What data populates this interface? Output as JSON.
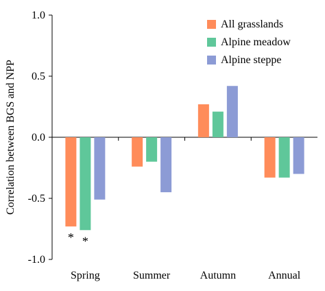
{
  "chart_data": {
    "type": "bar",
    "ylabel": "Correlation between BGS and NPP",
    "xlabel": "",
    "ylim": [
      -1.0,
      1.0
    ],
    "yticks": [
      1.0,
      0.5,
      0.0,
      -0.5,
      -1.0
    ],
    "ytick_labels": [
      "1.0",
      "0.5",
      "0.0",
      "-0.5",
      "-1.0"
    ],
    "categories": [
      "Spring",
      "Summer",
      "Autumn",
      "Annual"
    ],
    "series": [
      {
        "name": "All grasslands",
        "color": "#FF8C5A",
        "values": [
          -0.73,
          -0.24,
          0.27,
          -0.33
        ]
      },
      {
        "name": "Alpine meadow",
        "color": "#5FC79A",
        "values": [
          -0.76,
          -0.2,
          0.21,
          -0.33
        ]
      },
      {
        "name": "Alpine steppe",
        "color": "#8C9BD5",
        "values": [
          -0.51,
          -0.45,
          0.42,
          -0.3
        ]
      }
    ],
    "annotations": [
      {
        "category": "Spring",
        "series": "All grasslands",
        "text": "*"
      },
      {
        "category": "Spring",
        "series": "Alpine meadow",
        "text": "*"
      }
    ],
    "legend_position": "top-right",
    "grid": false
  }
}
